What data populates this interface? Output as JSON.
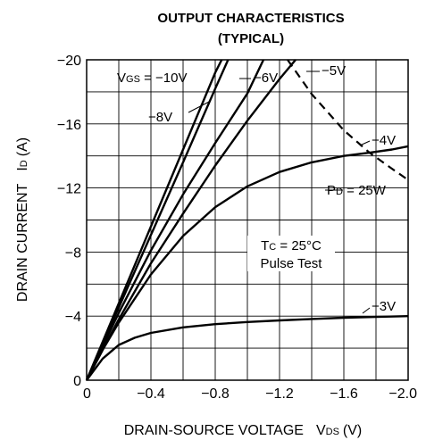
{
  "chart_data": {
    "type": "line",
    "title": "OUTPUT CHARACTERISTICS",
    "subtitle": "(TYPICAL)",
    "xlabel": {
      "main": "DRAIN-SOURCE VOLTAGE",
      "sym": "V",
      "sub": "DS",
      "unit": "(V)"
    },
    "ylabel": {
      "main": "DRAIN CURRENT",
      "sym": "I",
      "sub": "D",
      "unit": "(A)"
    },
    "xlim": [
      0,
      -2.0
    ],
    "ylim": [
      0,
      -20
    ],
    "grid": true,
    "x_ticks": [
      {
        "v": 0,
        "label": "0"
      },
      {
        "v": -0.4,
        "label": "−0.4"
      },
      {
        "v": -0.8,
        "label": "−0.8"
      },
      {
        "v": -1.2,
        "label": "−1.2"
      },
      {
        "v": -1.6,
        "label": "−1.6"
      },
      {
        "v": -2.0,
        "label": "−2.0"
      }
    ],
    "y_ticks": [
      {
        "v": 0,
        "label": "0"
      },
      {
        "v": -4,
        "label": "−4"
      },
      {
        "v": -8,
        "label": "−8"
      },
      {
        "v": -12,
        "label": "−12"
      },
      {
        "v": -16,
        "label": "−16"
      },
      {
        "v": -20,
        "label": "−20"
      }
    ],
    "series": [
      {
        "name": "VGS = −10V",
        "x": [
          0,
          -0.3,
          -0.6,
          -0.8,
          -0.84
        ],
        "y": [
          0,
          -7.2,
          -14.4,
          -19.2,
          -20
        ]
      },
      {
        "name": "−8V",
        "x": [
          0,
          -0.3,
          -0.6,
          -0.8,
          -0.88
        ],
        "y": [
          0,
          -6.8,
          -13.6,
          -18.2,
          -20
        ]
      },
      {
        "name": "−6V",
        "x": [
          0,
          -0.2,
          -0.4,
          -0.6,
          -0.8,
          -1.0,
          -1.1
        ],
        "y": [
          0,
          -4.2,
          -8.1,
          -11.6,
          -14.8,
          -17.9,
          -20
        ]
      },
      {
        "name": "−5V",
        "x": [
          0,
          -0.2,
          -0.4,
          -0.6,
          -0.8,
          -1.0,
          -1.2,
          -1.3
        ],
        "y": [
          0,
          -3.8,
          -7.3,
          -10.4,
          -13.4,
          -16.2,
          -18.8,
          -20
        ]
      },
      {
        "name": "−4V",
        "x": [
          0,
          -0.1,
          -0.2,
          -0.4,
          -0.6,
          -0.8,
          -1.0,
          -1.2,
          -1.4,
          -1.6,
          -1.76,
          -1.9,
          -2.0
        ],
        "y": [
          0,
          -1.9,
          -3.6,
          -6.6,
          -9.0,
          -10.8,
          -12.1,
          -13.0,
          -13.6,
          -14.0,
          -14.2,
          -14.4,
          -14.6
        ]
      },
      {
        "name": "−3V",
        "x": [
          0,
          -0.1,
          -0.2,
          -0.3,
          -0.4,
          -0.6,
          -0.8,
          -1.0,
          -1.2,
          -1.4,
          -1.6,
          -1.8,
          -2.0
        ],
        "y": [
          0,
          -1.35,
          -2.2,
          -2.65,
          -2.95,
          -3.3,
          -3.5,
          -3.63,
          -3.73,
          -3.82,
          -3.9,
          -3.95,
          -4.0
        ]
      }
    ],
    "power_limit": {
      "name": "PD = 25W",
      "sym": "P",
      "sub": "D",
      "value": " = 25W",
      "x": [
        -1.25,
        -1.4,
        -1.6,
        -1.76,
        -1.9,
        -2.0
      ],
      "y": [
        -20,
        -17.86,
        -15.6,
        -14.2,
        -13.2,
        -12.5
      ]
    },
    "annotations": {
      "vgs_sym": "V",
      "vgs_sub": "GS",
      "vgs_value": " = −10V",
      "v8": "−8V",
      "v6": "−6V",
      "v5": "−5V",
      "v4": "−4V",
      "v3": "−3V",
      "tc_sym": "T",
      "tc_sub": "C",
      "tc_value": " = 25°C",
      "pulse": "Pulse Test"
    }
  }
}
